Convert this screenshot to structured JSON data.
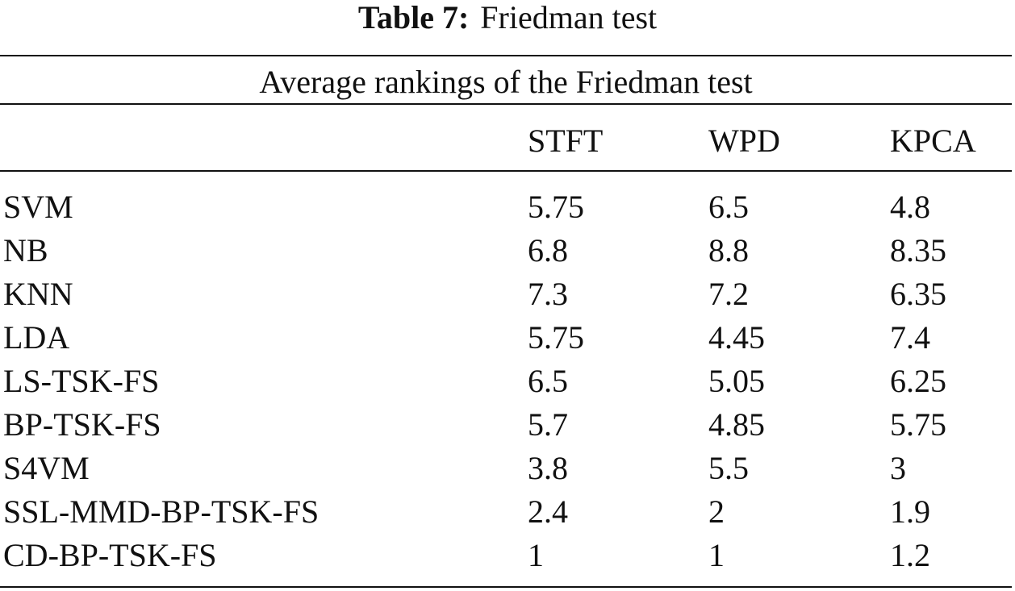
{
  "caption": {
    "label": "Table 7:",
    "text": "Friedman test"
  },
  "table": {
    "span_header": "Average rankings of the Friedman test",
    "columns": [
      "",
      "STFT",
      "WPD",
      "KPCA"
    ],
    "rows": [
      {
        "method": "SVM",
        "stft": "5.75",
        "wpd": "6.5",
        "kpca": "4.8"
      },
      {
        "method": "NB",
        "stft": "6.8",
        "wpd": "8.8",
        "kpca": "8.35"
      },
      {
        "method": "KNN",
        "stft": "7.3",
        "wpd": "7.2",
        "kpca": "6.35"
      },
      {
        "method": "LDA",
        "stft": "5.75",
        "wpd": "4.45",
        "kpca": "7.4"
      },
      {
        "method": "LS-TSK-FS",
        "stft": "6.5",
        "wpd": "5.05",
        "kpca": "6.25"
      },
      {
        "method": "BP-TSK-FS",
        "stft": "5.7",
        "wpd": "4.85",
        "kpca": "5.75"
      },
      {
        "method": "S4VM",
        "stft": "3.8",
        "wpd": "5.5",
        "kpca": "3"
      },
      {
        "method": "SSL-MMD-BP-TSK-FS",
        "stft": "2.4",
        "wpd": "2",
        "kpca": "1.9"
      },
      {
        "method": "CD-BP-TSK-FS",
        "stft": "1",
        "wpd": "1",
        "kpca": "1.2"
      }
    ]
  }
}
